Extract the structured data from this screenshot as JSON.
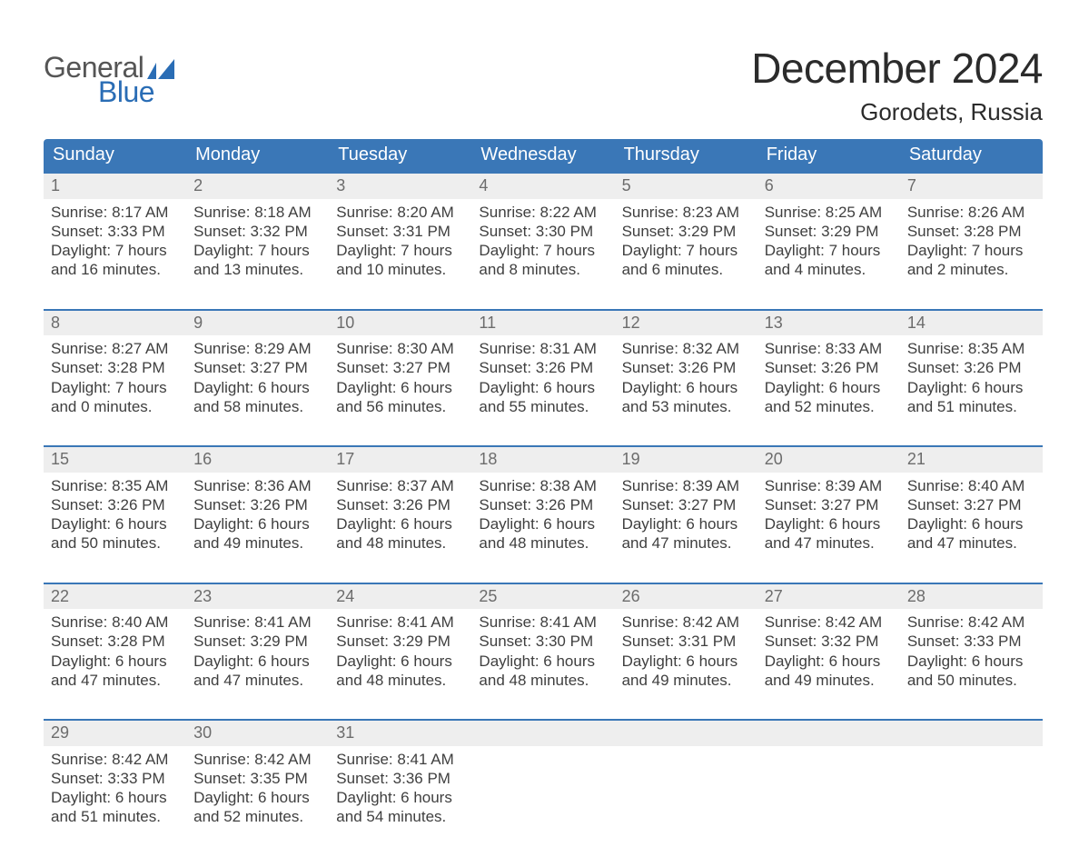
{
  "logo": {
    "part1": "General",
    "part2": "Blue",
    "text_color": "#555555",
    "accent_color": "#2a6db5"
  },
  "title": "December 2024",
  "location": "Gorodets, Russia",
  "colors": {
    "header_bg": "#3a77b7",
    "header_text": "#ffffff",
    "week_border": "#3a77b7",
    "daynum_bg": "#eeeeee",
    "daynum_text": "#6c6c6c",
    "body_text": "#3f3f3f",
    "page_bg": "#ffffff"
  },
  "dow": [
    "Sunday",
    "Monday",
    "Tuesday",
    "Wednesday",
    "Thursday",
    "Friday",
    "Saturday"
  ],
  "weeks": [
    [
      {
        "n": "1",
        "sunrise": "Sunrise: 8:17 AM",
        "sunset": "Sunset: 3:33 PM",
        "d1": "Daylight: 7 hours",
        "d2": "and 16 minutes."
      },
      {
        "n": "2",
        "sunrise": "Sunrise: 8:18 AM",
        "sunset": "Sunset: 3:32 PM",
        "d1": "Daylight: 7 hours",
        "d2": "and 13 minutes."
      },
      {
        "n": "3",
        "sunrise": "Sunrise: 8:20 AM",
        "sunset": "Sunset: 3:31 PM",
        "d1": "Daylight: 7 hours",
        "d2": "and 10 minutes."
      },
      {
        "n": "4",
        "sunrise": "Sunrise: 8:22 AM",
        "sunset": "Sunset: 3:30 PM",
        "d1": "Daylight: 7 hours",
        "d2": "and 8 minutes."
      },
      {
        "n": "5",
        "sunrise": "Sunrise: 8:23 AM",
        "sunset": "Sunset: 3:29 PM",
        "d1": "Daylight: 7 hours",
        "d2": "and 6 minutes."
      },
      {
        "n": "6",
        "sunrise": "Sunrise: 8:25 AM",
        "sunset": "Sunset: 3:29 PM",
        "d1": "Daylight: 7 hours",
        "d2": "and 4 minutes."
      },
      {
        "n": "7",
        "sunrise": "Sunrise: 8:26 AM",
        "sunset": "Sunset: 3:28 PM",
        "d1": "Daylight: 7 hours",
        "d2": "and 2 minutes."
      }
    ],
    [
      {
        "n": "8",
        "sunrise": "Sunrise: 8:27 AM",
        "sunset": "Sunset: 3:28 PM",
        "d1": "Daylight: 7 hours",
        "d2": "and 0 minutes."
      },
      {
        "n": "9",
        "sunrise": "Sunrise: 8:29 AM",
        "sunset": "Sunset: 3:27 PM",
        "d1": "Daylight: 6 hours",
        "d2": "and 58 minutes."
      },
      {
        "n": "10",
        "sunrise": "Sunrise: 8:30 AM",
        "sunset": "Sunset: 3:27 PM",
        "d1": "Daylight: 6 hours",
        "d2": "and 56 minutes."
      },
      {
        "n": "11",
        "sunrise": "Sunrise: 8:31 AM",
        "sunset": "Sunset: 3:26 PM",
        "d1": "Daylight: 6 hours",
        "d2": "and 55 minutes."
      },
      {
        "n": "12",
        "sunrise": "Sunrise: 8:32 AM",
        "sunset": "Sunset: 3:26 PM",
        "d1": "Daylight: 6 hours",
        "d2": "and 53 minutes."
      },
      {
        "n": "13",
        "sunrise": "Sunrise: 8:33 AM",
        "sunset": "Sunset: 3:26 PM",
        "d1": "Daylight: 6 hours",
        "d2": "and 52 minutes."
      },
      {
        "n": "14",
        "sunrise": "Sunrise: 8:35 AM",
        "sunset": "Sunset: 3:26 PM",
        "d1": "Daylight: 6 hours",
        "d2": "and 51 minutes."
      }
    ],
    [
      {
        "n": "15",
        "sunrise": "Sunrise: 8:35 AM",
        "sunset": "Sunset: 3:26 PM",
        "d1": "Daylight: 6 hours",
        "d2": "and 50 minutes."
      },
      {
        "n": "16",
        "sunrise": "Sunrise: 8:36 AM",
        "sunset": "Sunset: 3:26 PM",
        "d1": "Daylight: 6 hours",
        "d2": "and 49 minutes."
      },
      {
        "n": "17",
        "sunrise": "Sunrise: 8:37 AM",
        "sunset": "Sunset: 3:26 PM",
        "d1": "Daylight: 6 hours",
        "d2": "and 48 minutes."
      },
      {
        "n": "18",
        "sunrise": "Sunrise: 8:38 AM",
        "sunset": "Sunset: 3:26 PM",
        "d1": "Daylight: 6 hours",
        "d2": "and 48 minutes."
      },
      {
        "n": "19",
        "sunrise": "Sunrise: 8:39 AM",
        "sunset": "Sunset: 3:27 PM",
        "d1": "Daylight: 6 hours",
        "d2": "and 47 minutes."
      },
      {
        "n": "20",
        "sunrise": "Sunrise: 8:39 AM",
        "sunset": "Sunset: 3:27 PM",
        "d1": "Daylight: 6 hours",
        "d2": "and 47 minutes."
      },
      {
        "n": "21",
        "sunrise": "Sunrise: 8:40 AM",
        "sunset": "Sunset: 3:27 PM",
        "d1": "Daylight: 6 hours",
        "d2": "and 47 minutes."
      }
    ],
    [
      {
        "n": "22",
        "sunrise": "Sunrise: 8:40 AM",
        "sunset": "Sunset: 3:28 PM",
        "d1": "Daylight: 6 hours",
        "d2": "and 47 minutes."
      },
      {
        "n": "23",
        "sunrise": "Sunrise: 8:41 AM",
        "sunset": "Sunset: 3:29 PM",
        "d1": "Daylight: 6 hours",
        "d2": "and 47 minutes."
      },
      {
        "n": "24",
        "sunrise": "Sunrise: 8:41 AM",
        "sunset": "Sunset: 3:29 PM",
        "d1": "Daylight: 6 hours",
        "d2": "and 48 minutes."
      },
      {
        "n": "25",
        "sunrise": "Sunrise: 8:41 AM",
        "sunset": "Sunset: 3:30 PM",
        "d1": "Daylight: 6 hours",
        "d2": "and 48 minutes."
      },
      {
        "n": "26",
        "sunrise": "Sunrise: 8:42 AM",
        "sunset": "Sunset: 3:31 PM",
        "d1": "Daylight: 6 hours",
        "d2": "and 49 minutes."
      },
      {
        "n": "27",
        "sunrise": "Sunrise: 8:42 AM",
        "sunset": "Sunset: 3:32 PM",
        "d1": "Daylight: 6 hours",
        "d2": "and 49 minutes."
      },
      {
        "n": "28",
        "sunrise": "Sunrise: 8:42 AM",
        "sunset": "Sunset: 3:33 PM",
        "d1": "Daylight: 6 hours",
        "d2": "and 50 minutes."
      }
    ],
    [
      {
        "n": "29",
        "sunrise": "Sunrise: 8:42 AM",
        "sunset": "Sunset: 3:33 PM",
        "d1": "Daylight: 6 hours",
        "d2": "and 51 minutes."
      },
      {
        "n": "30",
        "sunrise": "Sunrise: 8:42 AM",
        "sunset": "Sunset: 3:35 PM",
        "d1": "Daylight: 6 hours",
        "d2": "and 52 minutes."
      },
      {
        "n": "31",
        "sunrise": "Sunrise: 8:41 AM",
        "sunset": "Sunset: 3:36 PM",
        "d1": "Daylight: 6 hours",
        "d2": "and 54 minutes."
      },
      {
        "empty": true
      },
      {
        "empty": true
      },
      {
        "empty": true
      },
      {
        "empty": true
      }
    ]
  ]
}
